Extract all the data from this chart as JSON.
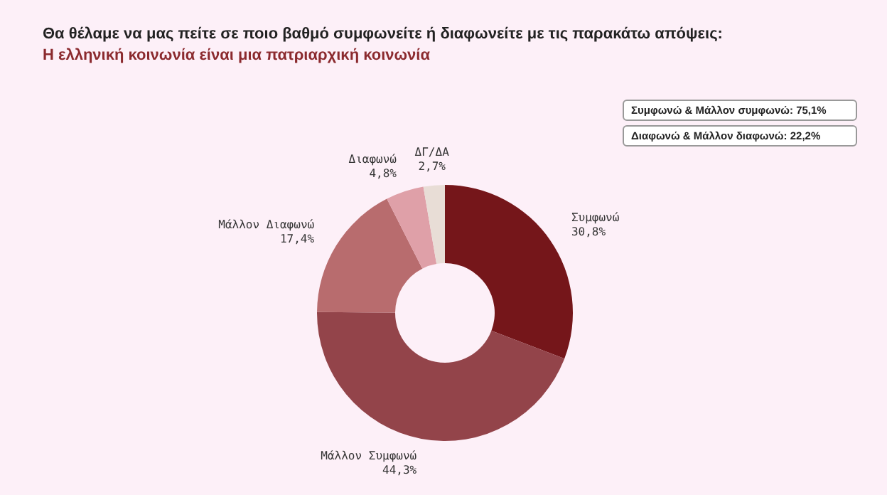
{
  "chart_data": {
    "type": "donut",
    "title": "Θα θέλαμε να μας πείτε σε ποιο βαθμό συμφωνείτε ή διαφωνείτε με τις παρακάτω απόψεις:",
    "subtitle": "Η ελληνική κοινωνία είναι μια πατριαρχική κοινωνία",
    "categories": [
      "Συμφωνώ",
      "Μάλλον Συμφωνώ",
      "Μάλλον Διαφωνώ",
      "Διαφωνώ",
      "ΔΓ/ΔΑ"
    ],
    "values": [
      30.8,
      44.3,
      17.4,
      4.8,
      2.7
    ],
    "colors": [
      "#75161a",
      "#93444a",
      "#b86c6e",
      "#dfa0a8",
      "#e8ddd6"
    ],
    "value_labels": [
      "30,8%",
      "44,3%",
      "17,4%",
      "4,8%",
      "2,7%"
    ],
    "annotations": [
      "Συμφωνώ & Μάλλον συμφωνώ: 75,1%",
      "Διαφωνώ & Μάλλον διαφωνώ: 22,2%"
    ],
    "legend": false
  }
}
